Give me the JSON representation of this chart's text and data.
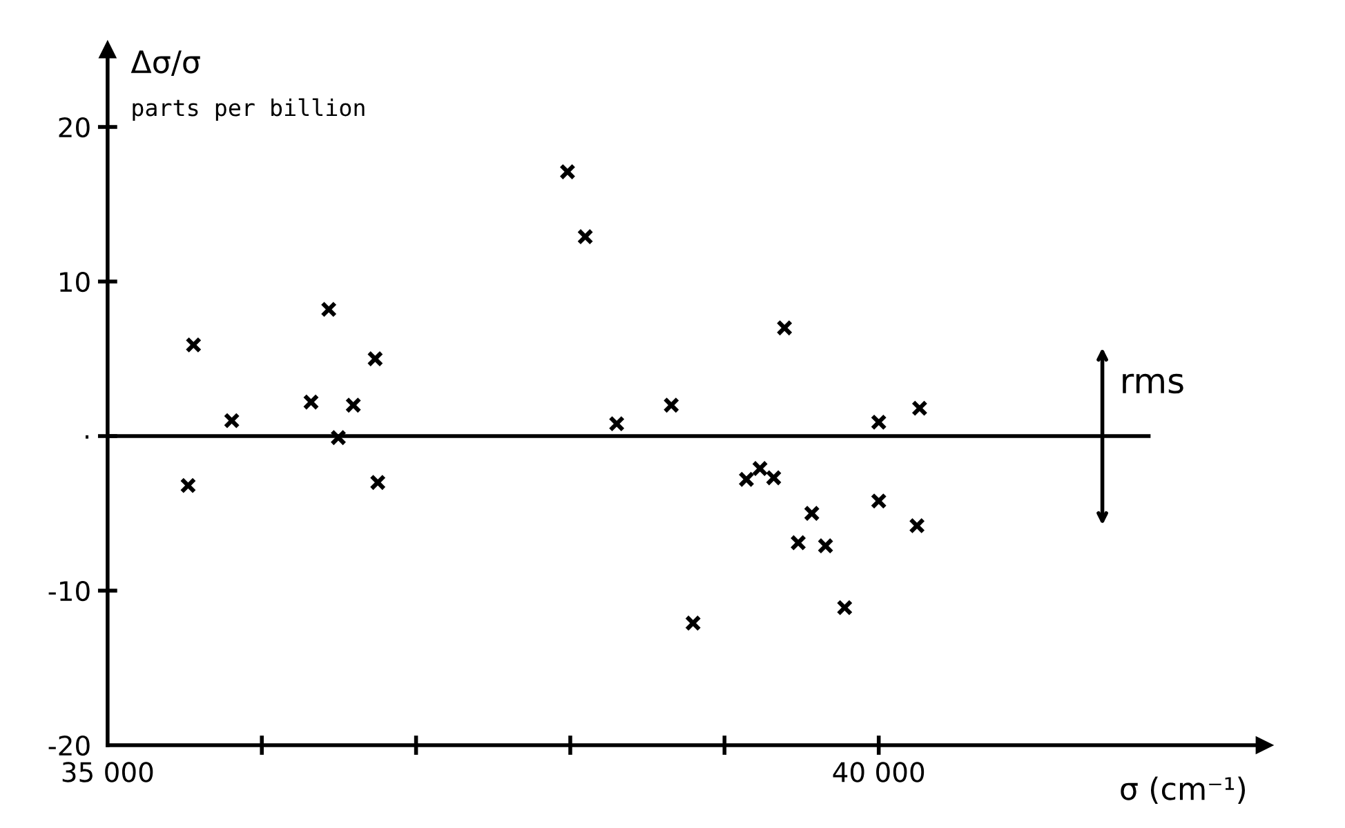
{
  "chart_data": {
    "type": "scatter",
    "ylabel": "Δσ/σ",
    "subtitle": "parts per billion",
    "xlabel": "σ (cm⁻¹)",
    "x": [
      35557,
      35522,
      35805,
      36319,
      36434,
      36496,
      36593,
      36735,
      36752,
      37982,
      38097,
      38301,
      38655,
      38796,
      39142,
      39230,
      39319,
      39389,
      39566,
      39478,
      39655,
      39779,
      40000,
      40000,
      40248,
      40265
    ],
    "series": [
      {
        "color": "#000000",
        "values": [
          5.9,
          -3.2,
          1.0,
          2.2,
          8.2,
          -0.1,
          2.0,
          5.0,
          -3.0,
          17.1,
          12.9,
          0.8,
          2.0,
          -12.1,
          -2.8,
          -2.1,
          -2.7,
          7.0,
          -5.0,
          -6.9,
          -7.1,
          -11.1,
          -4.2,
          0.9,
          -5.8,
          1.8
        ]
      }
    ],
    "marker": "cross",
    "xlim": [
      35000,
      42500
    ],
    "ylim": [
      -20,
      25
    ],
    "xticks": [
      {
        "value": 35000,
        "label": "35 000"
      },
      {
        "value": 36000,
        "label": null
      },
      {
        "value": 37000,
        "label": null
      },
      {
        "value": 38000,
        "label": null
      },
      {
        "value": 39000,
        "label": null
      },
      {
        "value": 40000,
        "label": "40 000"
      }
    ],
    "yticks": [
      -20,
      -10,
      {
        "value": 0,
        "label": "·"
      },
      10,
      20
    ],
    "ref_lines": [
      {
        "axis": "y",
        "value": 0,
        "label": null,
        "color": "#000000"
      }
    ],
    "annotations": [
      "rms"
    ],
    "grid": false,
    "legend": false
  }
}
